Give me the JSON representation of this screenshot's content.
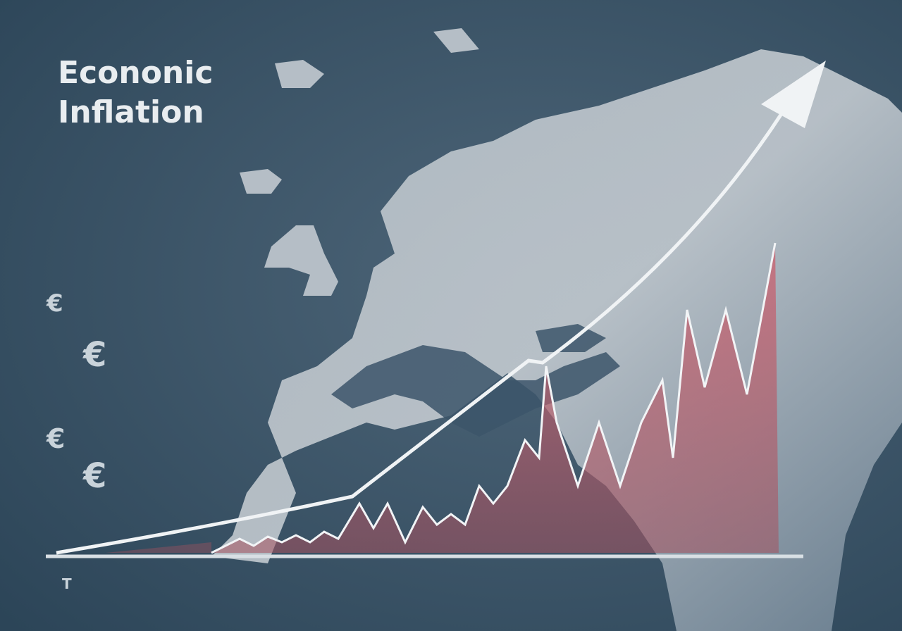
{
  "title": {
    "line1": "Econonic",
    "line2": "Inflation"
  },
  "symbols": [
    "€",
    "€",
    "€",
    "€"
  ],
  "axis_mark": "T"
}
